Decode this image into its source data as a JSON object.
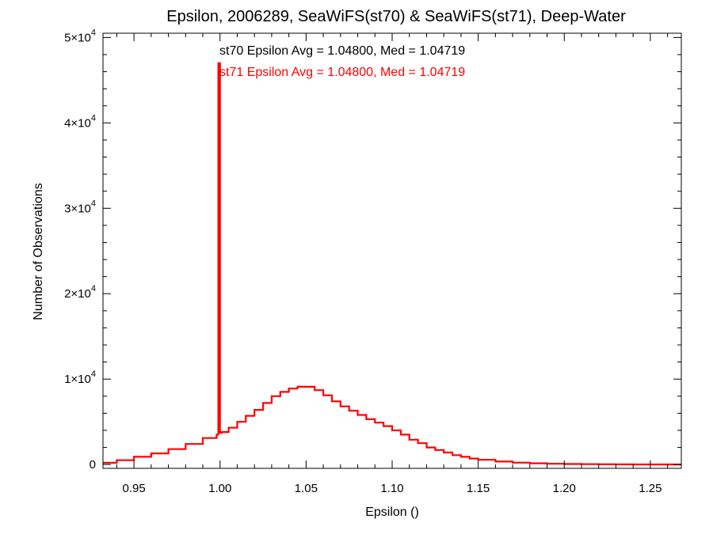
{
  "chart_data": {
    "type": "line",
    "title": "Epsilon, 2006289, SeaWiFS(st70) & SeaWiFS(st71), Deep-Water",
    "xlabel": "Epsilon ()",
    "ylabel": "Number of Observations",
    "xlim": [
      0.932,
      1.268
    ],
    "ylim": [
      -450,
      50500
    ],
    "grid": false,
    "x_ticks": [
      0.95,
      1.0,
      1.05,
      1.1,
      1.15,
      1.2,
      1.25
    ],
    "x_tick_labels": [
      "0.95",
      "1.00",
      "1.05",
      "1.10",
      "1.15",
      "1.20",
      "1.25"
    ],
    "y_ticks": [
      0,
      10000,
      20000,
      30000,
      40000,
      50000
    ],
    "y_tick_labels": [
      {
        "mantissa": "0",
        "exponent": ""
      },
      {
        "mantissa": "1×10",
        "exponent": "4"
      },
      {
        "mantissa": "2×10",
        "exponent": "4"
      },
      {
        "mantissa": "3×10",
        "exponent": "4"
      },
      {
        "mantissa": "4×10",
        "exponent": "4"
      },
      {
        "mantissa": "5×10",
        "exponent": "4"
      }
    ],
    "annotations": [
      {
        "text": "st70 Epsilon Avg = 1.04800, Med = 1.04719",
        "color": "#000000"
      },
      {
        "text": "st71 Epsilon Avg = 1.04800, Med = 1.04719",
        "color": "#ff0000"
      }
    ],
    "series": [
      {
        "color": "#ff0000",
        "step": true,
        "x": [
          0.932,
          0.94,
          0.95,
          0.96,
          0.97,
          0.98,
          0.99,
          0.998,
          0.999,
          1.0,
          1.001,
          1.005,
          1.01,
          1.015,
          1.02,
          1.025,
          1.03,
          1.035,
          1.04,
          1.045,
          1.05,
          1.055,
          1.06,
          1.065,
          1.07,
          1.075,
          1.08,
          1.085,
          1.09,
          1.095,
          1.1,
          1.105,
          1.11,
          1.115,
          1.12,
          1.125,
          1.13,
          1.135,
          1.14,
          1.145,
          1.15,
          1.16,
          1.17,
          1.18,
          1.19,
          1.2,
          1.21,
          1.22,
          1.23,
          1.24,
          1.25,
          1.268
        ],
        "y": [
          200,
          500,
          900,
          1300,
          1800,
          2400,
          3100,
          3500,
          47000,
          3700,
          3800,
          4300,
          5000,
          5700,
          6400,
          7200,
          8000,
          8500,
          8900,
          9100,
          9100,
          8700,
          8100,
          7400,
          6800,
          6300,
          5800,
          5300,
          4900,
          4500,
          4000,
          3500,
          2900,
          2500,
          2000,
          1700,
          1400,
          1100,
          900,
          700,
          550,
          350,
          220,
          140,
          90,
          60,
          40,
          25,
          15,
          8,
          5,
          0
        ]
      }
    ]
  }
}
